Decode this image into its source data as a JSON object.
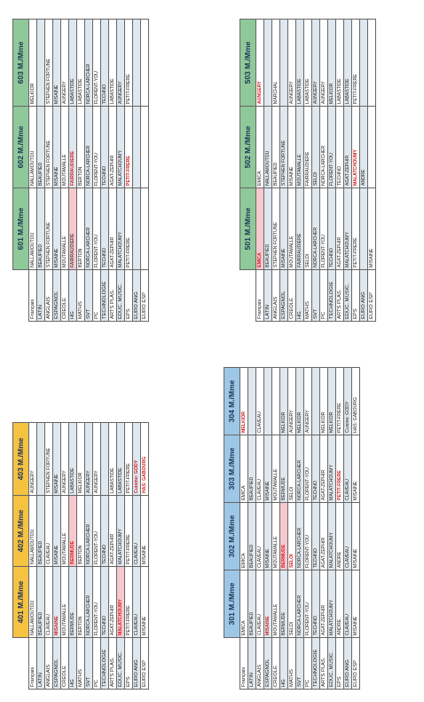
{
  "colors": {
    "blue_header": "#9ec7e6",
    "yellow_header": "#f5c242",
    "green_header": "#8fc99a",
    "row_shade": "#dfe7ef",
    "accent_red": "#d21f1f"
  },
  "tables": {
    "t300": {
      "headers": [
        "301 M./Mme",
        "302 M./Mme",
        "303 M./Mme",
        "304 M./Mme"
      ],
      "rows": [
        {
          "subject": "Français",
          "cells": [
            "EMICA",
            "EMICA",
            "EMICA",
            "MELKIOR"
          ]
        },
        {
          "subject": "LATIN",
          "cells": [
            "BEAUPIED",
            "BEAUPIED",
            "BEAUPIED",
            ""
          ]
        },
        {
          "subject": "ANGLAIS",
          "cells": [
            "CLAVEAU",
            "CLAVEAU",
            "CLAVEAU",
            "CLAVEAU"
          ]
        },
        {
          "subject": "ESPAGNOL",
          "cells": [
            "MISAINE",
            "MISAINE",
            "MISAINE",
            ""
          ]
        },
        {
          "subject": "CREOLE",
          "cells": [
            "MOUTAMALLE",
            "MOUTAMALLE",
            "MOUTAMALLE",
            ""
          ]
        },
        {
          "subject": "HG",
          "cells": [
            "BERMUDE",
            "BERMUDE",
            "BERMUDE",
            "MELKIOR"
          ]
        },
        {
          "subject": "MATHS",
          "cells": [
            "SELOI",
            "SELOI",
            "SELOI",
            "AUNGERY"
          ]
        },
        {
          "subject": "SVT",
          "cells": [
            "NORCA-LARCHER",
            "NORCA-LARCHER",
            "NORCA-LARCHER",
            "MELKIOR"
          ]
        },
        {
          "subject": "PC",
          "cells": [
            "FLORENT-YOU",
            "FLORENT-YOU",
            "FLORENT-YOU",
            "AUNGERY"
          ]
        },
        {
          "subject": "TECHNOLOGIE",
          "cells": [
            "TECHNO",
            "TECHNO",
            "TECHNO",
            ""
          ]
        },
        {
          "subject": "ARTS PLAS.",
          "cells": [
            "AGAT-ZEPHIR",
            "AGAT-ZEPHIR",
            "AGAT-ZEPHIR",
            "MELKIOR"
          ]
        },
        {
          "subject": "EDUC. MUSIC.",
          "cells": [
            "MALATCHOUMY",
            "MALATCHOUMY",
            "MALATCHOUMY",
            "MELKIOR"
          ]
        },
        {
          "subject": "EPS",
          "cells": [
            "ANDRE",
            "ANDRE",
            "PETIT-FRERE",
            "PETIT-FRERE"
          ]
        },
        {
          "subject": "EURO ANG",
          "cells": [
            "CLAVEAU",
            "CLAVEAU",
            "CLAVEAU",
            "Cuisine: GODY"
          ]
        },
        {
          "subject": "EURO ESP",
          "cells": [
            "MISAINE",
            "MISAINE",
            "MISAINE",
            "HAS: GABOURG"
          ]
        }
      ]
    },
    "t400": {
      "headers": [
        "401 M./Mme",
        "402 M./Mme",
        "403 M./Mme"
      ],
      "rows": [
        {
          "subject": "Français",
          "cells": [
            "NALLAMOUTOU",
            "NALLAMOUTOU",
            "AUNGERY"
          ]
        },
        {
          "subject": "LATIN",
          "cells": [
            "BEAUPIED",
            "BEAUPIED",
            ""
          ]
        },
        {
          "subject": "ANGLAIS",
          "cells": [
            "CLAVEAU",
            "CLAVEAU",
            "STEPHEN FORTUNE"
          ]
        },
        {
          "subject": "ESPAGNOL",
          "cells": [
            "MISAINE",
            "MISAINE",
            "MISAINE"
          ]
        },
        {
          "subject": "CREOLE",
          "cells": [
            "MOUTAMALLE",
            "MOUTAMALLE",
            "AUNGERY"
          ]
        },
        {
          "subject": "HG",
          "cells": [
            "BERMUDE",
            "BERMUDE",
            "LABASTIDE"
          ]
        },
        {
          "subject": "MATHS",
          "cells": [
            "BERTON",
            "BERTON",
            "MELKIOR"
          ]
        },
        {
          "subject": "SVT",
          "cells": [
            "NORCA-LARCHER",
            "NORCA-LARCHER",
            "AUNGERY"
          ]
        },
        {
          "subject": "PC",
          "cells": [
            "FLORENT-YOU",
            "FLORENT-YOU",
            "AUNGERY"
          ]
        },
        {
          "subject": "TECHNOLOGIE",
          "cells": [
            "TECHNO",
            "TECHNO",
            ""
          ]
        },
        {
          "subject": "ARTS PLAS.",
          "cells": [
            "AGAT-ZEPHIR",
            "AGAT-ZEPHIR",
            "LABASTIDE"
          ]
        },
        {
          "subject": "EDUC. MUSIC.",
          "cells": [
            "MALATCHOUMY",
            "MALATCHOUMY",
            "LABASTIDE"
          ]
        },
        {
          "subject": "EPS",
          "cells": [
            "PETIT-FRERE",
            "PETIT-FRERE",
            "PETIT-FRERE"
          ]
        },
        {
          "subject": "EURO ANG",
          "cells": [
            "CLAVEAU",
            "CLAVEAU",
            "Cuisine: GODY"
          ]
        },
        {
          "subject": "EURO ESP",
          "cells": [
            "MISAINE",
            "MISAINE",
            "HAS: GABOURG"
          ]
        }
      ]
    },
    "t500": {
      "headers": [
        "501 M./Mme",
        "502 M./Mme",
        "503 M./Mme"
      ],
      "rows": [
        {
          "subject": "Français",
          "cells": [
            "EMICA",
            "EMICA",
            "AUNGERY"
          ]
        },
        {
          "subject": "LATIN",
          "cells": [
            "BEAUPIED",
            "NALLAMOUTOU",
            ""
          ]
        },
        {
          "subject": "ANGLAIS",
          "cells": [
            "STEPHEN FORTUNE",
            "BEAUPIED",
            "MARCHAL"
          ]
        },
        {
          "subject": "ESPAGNOL",
          "cells": [
            "MISAINE",
            "STEPHEN FORTUNE",
            ""
          ]
        },
        {
          "subject": "CREOLE",
          "cells": [
            "MOUTAMALLE",
            "MISAINE",
            "AUNGERY"
          ]
        },
        {
          "subject": "HG",
          "cells": [
            "FAIRRAUDIERE",
            "MOUTAMALLE",
            "LABASTIDE"
          ]
        },
        {
          "subject": "MATHS",
          "cells": [
            "SELOI",
            "FAIRRAUDIERE",
            "LABASTIDE"
          ]
        },
        {
          "subject": "SVT",
          "cells": [
            "NORCA-LARCHER",
            "SELOI",
            "AUNGERY"
          ]
        },
        {
          "subject": "PC",
          "cells": [
            "FLORENT-YOU",
            "NORCA-LARCHER",
            "AUNGERY"
          ]
        },
        {
          "subject": "TECHNOLOGIE",
          "cells": [
            "TECHNO",
            "FLORENT-YOU",
            "MELKIOR"
          ]
        },
        {
          "subject": "ARTS PLAS.",
          "cells": [
            "AGAT-ZEPHIR",
            "TECHNO",
            "LABASTIDE"
          ]
        },
        {
          "subject": "EDUC. MUSIC.",
          "cells": [
            "MALATCHOUMY",
            "AGAT-ZEPHIR",
            "LABASTIDE"
          ]
        },
        {
          "subject": "EPS",
          "cells": [
            "PETIT-FRERE",
            "MALATCHOUMY",
            "PETIT-FRERE"
          ]
        },
        {
          "subject": "EURO ANG",
          "cells": [
            "",
            "ANDRE",
            ""
          ]
        },
        {
          "subject": "EURO ESP",
          "cells": [
            "MISAINE",
            "",
            ""
          ]
        }
      ]
    },
    "t600": {
      "headers": [
        "601 M./Mme",
        "602 M./Mme",
        "603 M./Mme"
      ],
      "rows": [
        {
          "subject": "Français",
          "cells": [
            "NALLAMOUTOU",
            "NALLAMOUTOU",
            "MELKIOR"
          ]
        },
        {
          "subject": "LATIN",
          "cells": [
            "BEAUPIED",
            "BEAUPIED",
            ""
          ]
        },
        {
          "subject": "ANGLAIS",
          "cells": [
            "STEPHEN FORTUNE",
            "STEPHEN FORTUNE",
            "STEPHEN FORTUNE"
          ]
        },
        {
          "subject": "ESPAGNOL",
          "cells": [
            "MISAINE",
            "MISAINE",
            "MISAINE"
          ]
        },
        {
          "subject": "CREOLE",
          "cells": [
            "MOUTAMALLE",
            "MOUTAMALLE",
            "AUNGERY"
          ]
        },
        {
          "subject": "HG",
          "cells": [
            "FAIRRAUDIERE",
            "FAIRRAUDIERE",
            "LABASTIDE"
          ]
        },
        {
          "subject": "MATHS",
          "cells": [
            "BERTON",
            "BERTON",
            "LABASTIDE"
          ]
        },
        {
          "subject": "SVT",
          "cells": [
            "NORCA-LARCHER",
            "NORCA-LARCHER",
            "NORCA-LARCHER"
          ]
        },
        {
          "subject": "PC",
          "cells": [
            "FLORENT-YOU",
            "FLORENT-YOU",
            "FLORENT-YOU"
          ]
        },
        {
          "subject": "TECHNOLOGIE",
          "cells": [
            "TECHNO",
            "TECHNO",
            "TECHNO"
          ]
        },
        {
          "subject": "ARTS PLAS.",
          "cells": [
            "AGAT-ZEPHIR",
            "AGAT-ZEPHIR",
            "LABASTIDE"
          ]
        },
        {
          "subject": "EDUC. MUSIC.",
          "cells": [
            "MALATCHOUMY",
            "MALATCHOUMY",
            "AUNGERY"
          ]
        },
        {
          "subject": "EPS",
          "cells": [
            "PETIT-FRERE",
            "PETIT-FRERE",
            "PETIT-FRERE"
          ]
        },
        {
          "subject": "EURO ANG",
          "cells": [
            "",
            "",
            ""
          ]
        },
        {
          "subject": "EURO ESP",
          "cells": [
            "",
            "",
            ""
          ]
        }
      ]
    }
  }
}
